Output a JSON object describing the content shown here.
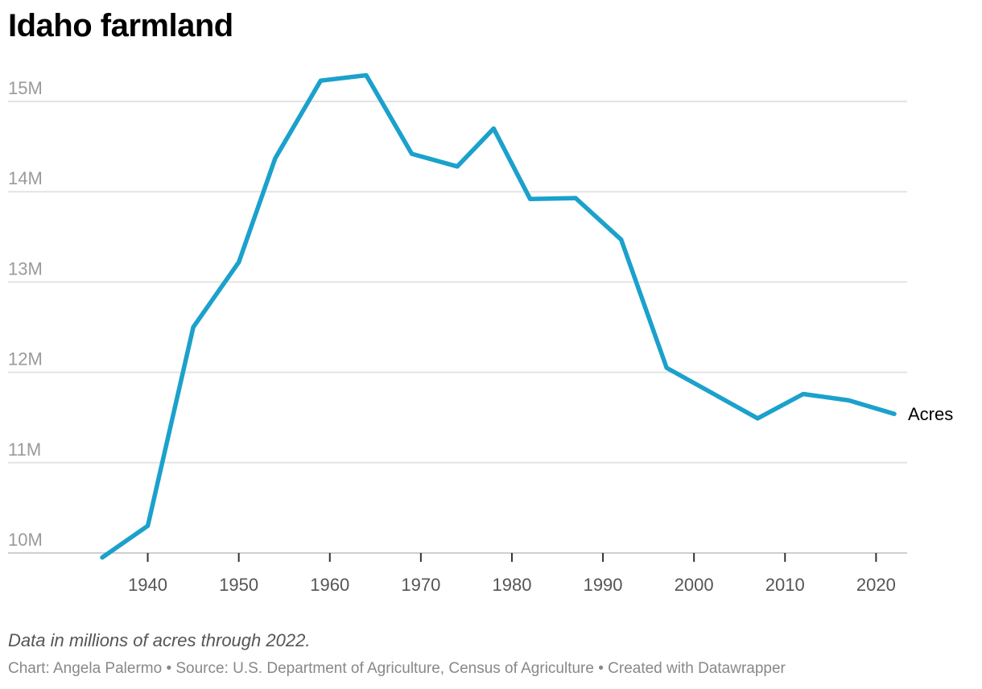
{
  "chart_data": {
    "type": "line",
    "title": "Idaho farmland",
    "note": "Data in millions of acres through 2022.",
    "byline": "Chart: Angela Palermo • Source: U.S. Department of Agriculture, Census of Agriculture • Created with Datawrapper",
    "x": [
      1935,
      1940,
      1945,
      1950,
      1954,
      1959,
      1964,
      1969,
      1974,
      1978,
      1982,
      1987,
      1992,
      1997,
      2002,
      2007,
      2012,
      2017,
      2022
    ],
    "series": [
      {
        "name": "Acres",
        "color": "#1ba1cc",
        "values": [
          9.95,
          10.3,
          12.5,
          13.22,
          14.37,
          15.23,
          15.29,
          14.42,
          14.28,
          14.7,
          13.92,
          13.93,
          13.47,
          12.05,
          11.77,
          11.49,
          11.76,
          11.69,
          11.54
        ]
      }
    ],
    "yticks": [
      {
        "value": 10,
        "label": "10M"
      },
      {
        "value": 11,
        "label": "11M"
      },
      {
        "value": 12,
        "label": "12M"
      },
      {
        "value": 13,
        "label": "13M"
      },
      {
        "value": 14,
        "label": "14M"
      },
      {
        "value": 15,
        "label": "15M"
      }
    ],
    "xticks": [
      {
        "value": 1940,
        "label": "1940"
      },
      {
        "value": 1950,
        "label": "1950"
      },
      {
        "value": 1960,
        "label": "1960"
      },
      {
        "value": 1970,
        "label": "1970"
      },
      {
        "value": 1980,
        "label": "1980"
      },
      {
        "value": 1990,
        "label": "1990"
      },
      {
        "value": 2000,
        "label": "2000"
      },
      {
        "value": 2010,
        "label": "2010"
      },
      {
        "value": 2020,
        "label": "2020"
      }
    ],
    "xlim": [
      1935,
      2022
    ],
    "ylim": [
      10,
      15
    ],
    "grid": "horizontal",
    "colors": {
      "gridline": "#e3e3e3",
      "axis": "#333333"
    }
  }
}
